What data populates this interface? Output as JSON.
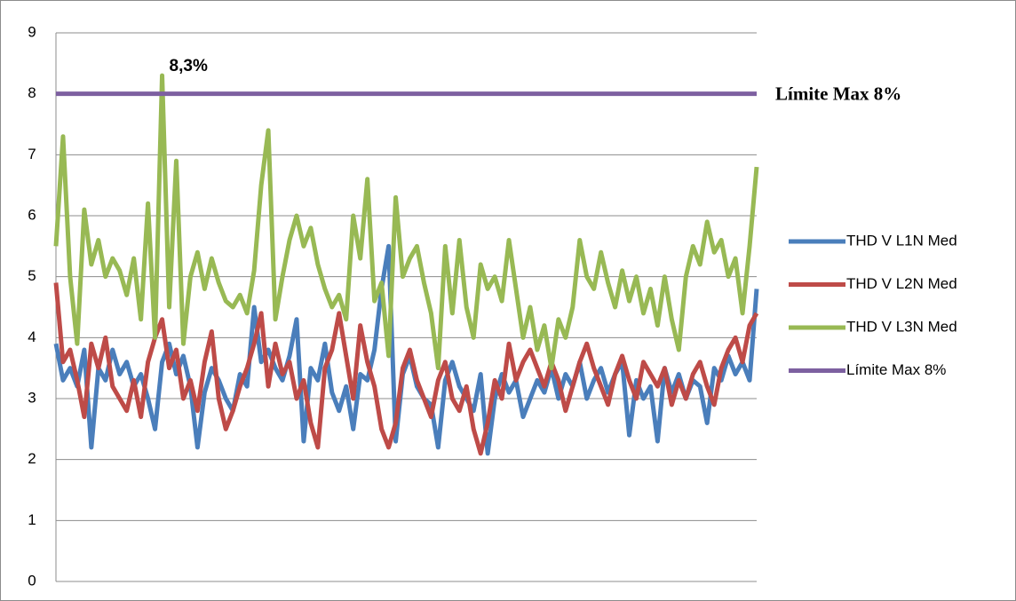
{
  "chart_data": {
    "type": "line",
    "series": [
      {
        "name": "THD V L1N Med",
        "color": "#4a7ebb",
        "values": [
          3.9,
          3.3,
          3.5,
          3.2,
          3.8,
          2.2,
          3.5,
          3.3,
          3.8,
          3.4,
          3.6,
          3.2,
          3.4,
          3.0,
          2.5,
          3.6,
          3.9,
          3.4,
          3.7,
          3.2,
          2.2,
          3.1,
          3.5,
          3.3,
          3.0,
          2.8,
          3.4,
          3.2,
          4.5,
          3.6,
          3.8,
          3.5,
          3.3,
          3.7,
          4.3,
          2.3,
          3.5,
          3.3,
          3.9,
          3.1,
          2.8,
          3.2,
          2.5,
          3.4,
          3.3,
          3.8,
          4.8,
          5.5,
          2.3,
          3.4,
          3.7,
          3.2,
          3.0,
          2.9,
          2.2,
          3.3,
          3.6,
          3.2,
          3.0,
          2.8,
          3.4,
          2.1,
          3.0,
          3.4,
          3.1,
          3.3,
          2.7,
          3.0,
          3.3,
          3.1,
          3.5,
          3.0,
          3.4,
          3.2,
          3.6,
          3.0,
          3.3,
          3.5,
          3.1,
          3.4,
          3.6,
          2.4,
          3.3,
          3.0,
          3.2,
          2.3,
          3.5,
          3.1,
          3.4,
          3.0,
          3.3,
          3.2,
          2.6,
          3.5,
          3.3,
          3.7,
          3.4,
          3.6,
          3.3,
          4.8
        ]
      },
      {
        "name": "THD V L2N Med",
        "color": "#be4b48",
        "values": [
          4.9,
          3.6,
          3.8,
          3.3,
          2.7,
          3.9,
          3.5,
          4.0,
          3.2,
          3.0,
          2.8,
          3.3,
          2.7,
          3.6,
          4.0,
          4.3,
          3.5,
          3.8,
          3.0,
          3.3,
          2.8,
          3.6,
          4.1,
          3.0,
          2.5,
          2.8,
          3.2,
          3.5,
          3.9,
          4.4,
          3.2,
          3.9,
          3.4,
          3.6,
          3.0,
          3.3,
          2.6,
          2.2,
          3.5,
          3.8,
          4.4,
          3.7,
          3.0,
          4.2,
          3.6,
          3.2,
          2.5,
          2.2,
          2.6,
          3.5,
          3.8,
          3.3,
          3.0,
          2.7,
          3.3,
          3.6,
          3.0,
          2.8,
          3.2,
          2.5,
          2.1,
          2.6,
          3.3,
          3.0,
          3.9,
          3.3,
          3.6,
          3.8,
          3.5,
          3.2,
          3.6,
          3.3,
          2.8,
          3.2,
          3.6,
          3.9,
          3.5,
          3.2,
          2.9,
          3.4,
          3.7,
          3.3,
          3.0,
          3.6,
          3.4,
          3.2,
          3.5,
          2.9,
          3.3,
          3.0,
          3.4,
          3.6,
          3.2,
          2.9,
          3.5,
          3.8,
          4.0,
          3.6,
          4.2,
          4.4
        ]
      },
      {
        "name": "THD V L3N Med",
        "color": "#98b954",
        "values": [
          5.5,
          7.3,
          5.0,
          3.9,
          6.1,
          5.2,
          5.6,
          5.0,
          5.3,
          5.1,
          4.7,
          5.3,
          4.3,
          6.2,
          4.0,
          8.3,
          4.5,
          6.9,
          3.9,
          5.0,
          5.4,
          4.8,
          5.3,
          4.9,
          4.6,
          4.5,
          4.7,
          4.4,
          5.1,
          6.5,
          7.4,
          4.3,
          5.0,
          5.6,
          6.0,
          5.5,
          5.8,
          5.2,
          4.8,
          4.5,
          4.7,
          4.3,
          6.0,
          5.3,
          6.6,
          4.6,
          4.9,
          3.7,
          6.3,
          5.0,
          5.3,
          5.5,
          4.9,
          4.4,
          3.5,
          5.5,
          4.4,
          5.6,
          4.5,
          4.0,
          5.2,
          4.8,
          5.0,
          4.6,
          5.6,
          4.8,
          4.0,
          4.5,
          3.8,
          4.2,
          3.5,
          4.3,
          4.0,
          4.5,
          5.6,
          5.0,
          4.8,
          5.4,
          4.9,
          4.5,
          5.1,
          4.6,
          5.0,
          4.4,
          4.8,
          4.2,
          5.0,
          4.3,
          3.8,
          5.0,
          5.5,
          5.2,
          5.9,
          5.4,
          5.6,
          5.0,
          5.3,
          4.4,
          5.5,
          6.8
        ]
      }
    ],
    "reference_lines": [
      {
        "name": "Límite Max 8%",
        "value": 8,
        "color": "#7d60a0"
      }
    ],
    "annotations": [
      {
        "text": "8,3%",
        "value": 8.3,
        "color": "#00b050"
      }
    ],
    "ylim": [
      0,
      9
    ],
    "yticks": [
      0,
      1,
      2,
      3,
      4,
      5,
      6,
      7,
      8,
      9
    ],
    "grid": true
  }
}
